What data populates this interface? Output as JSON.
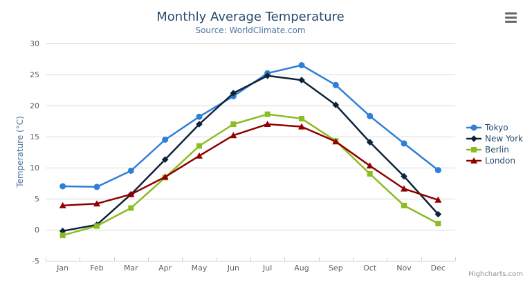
{
  "chart_data": {
    "type": "line",
    "title": "Monthly Average Temperature",
    "subtitle": "Source: WorldClimate.com",
    "categories": [
      "Jan",
      "Feb",
      "Mar",
      "Apr",
      "May",
      "Jun",
      "Jul",
      "Aug",
      "Sep",
      "Oct",
      "Nov",
      "Dec"
    ],
    "series": [
      {
        "name": "Tokyo",
        "color": "#2f7ed8",
        "marker": "circle",
        "values": [
          7.0,
          6.9,
          9.5,
          14.5,
          18.2,
          21.5,
          25.2,
          26.5,
          23.3,
          18.3,
          13.9,
          9.6
        ]
      },
      {
        "name": "New York",
        "color": "#0d233a",
        "marker": "diamond",
        "values": [
          -0.2,
          0.8,
          5.7,
          11.3,
          17.0,
          22.0,
          24.8,
          24.1,
          20.1,
          14.1,
          8.6,
          2.5
        ]
      },
      {
        "name": "Berlin",
        "color": "#8bbc21",
        "marker": "square",
        "values": [
          -0.9,
          0.6,
          3.5,
          8.4,
          13.5,
          17.0,
          18.6,
          17.9,
          14.3,
          9.0,
          3.9,
          1.0
        ]
      },
      {
        "name": "London",
        "color": "#910000",
        "marker": "triangle",
        "values": [
          3.9,
          4.2,
          5.7,
          8.5,
          11.9,
          15.2,
          17.0,
          16.6,
          14.2,
          10.3,
          6.6,
          4.8
        ]
      }
    ],
    "xlabel": "",
    "ylabel": "Temperature (°C)",
    "ylim": [
      -5,
      30
    ],
    "yticks": [
      -5,
      0,
      5,
      10,
      15,
      20,
      25,
      30
    ],
    "grid": true,
    "legend_position": "right"
  },
  "colors": {
    "title": "#274b6d",
    "subtitle": "#4d759e",
    "axis_label": "#606060",
    "axis_title": "#4d759e",
    "grid_line": "#d8d8d8",
    "axis_line": "#c0d0e0",
    "tick": "#c0d0e0",
    "legend_text": "#274b6d",
    "credit": "#909090",
    "export_icon": "#666666",
    "background": "#ffffff"
  },
  "icons": {
    "export_menu": "hamburger-icon"
  },
  "credits": {
    "text": "Highcharts.com"
  }
}
